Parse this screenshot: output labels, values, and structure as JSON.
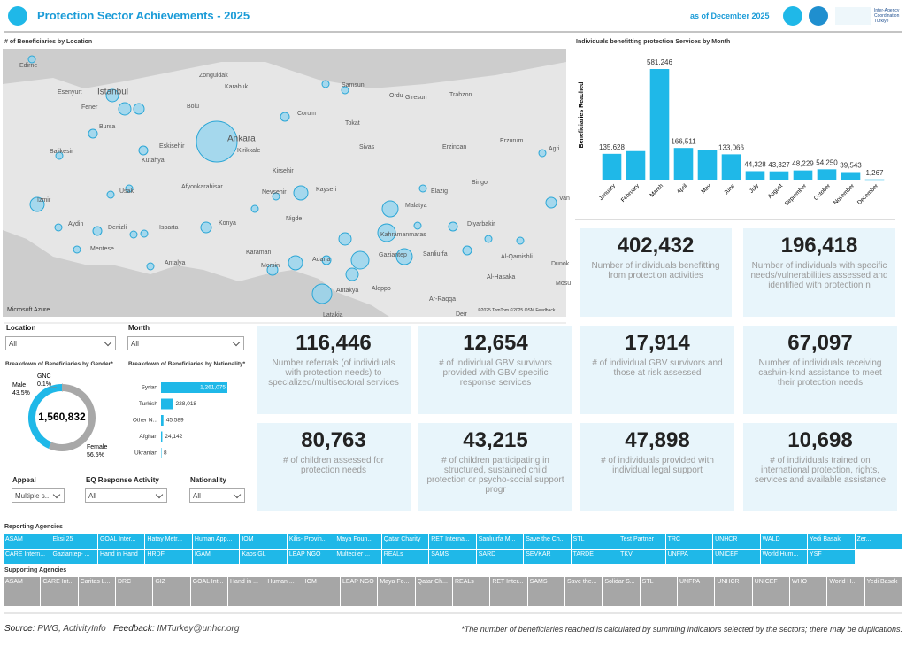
{
  "header": {
    "title": "Protection Sector Achievements - 2025",
    "as_of": "as of December 2025",
    "partner": "Inter-Agency Coordination Türkiye"
  },
  "map": {
    "title": "# of Beneficiaries by Location",
    "cities": [
      "Edirne",
      "Esenyurt",
      "Istanbul",
      "Fener",
      "Bursa",
      "Balikesir",
      "Eskisehir",
      "Kutahya",
      "Izmir",
      "Aydin",
      "Denizli",
      "Mentese",
      "Isparta",
      "Antalya",
      "Afyonkarahisar",
      "Usak",
      "Konya",
      "Ankara",
      "Kirikkale",
      "Kirsehir",
      "Nevsehir",
      "Nigde",
      "Kayseri",
      "Corum",
      "Samsun",
      "Karabuk",
      "Bolu",
      "Zonguldak",
      "Ordu",
      "Giresun",
      "Trabzon",
      "Tokat",
      "Sivas",
      "Erzincan",
      "Erzurum",
      "Agri",
      "Bingol",
      "Elazig",
      "Malatya",
      "Van",
      "Diyarbakir",
      "Kahramanmaras",
      "Gaziantep",
      "Sanliurfa",
      "Adana",
      "Mersin",
      "Karaman",
      "Antakya",
      "Aleppo",
      "Al-Qamishli",
      "Al-Hasaka",
      "Dunok",
      "Mosu",
      "Ar-Raqqa",
      "Latakia",
      "Deir"
    ],
    "attribution": "Microsoft Azure",
    "credits": "©2025 TomTom ©2025 OSM Feedback"
  },
  "chart_data": [
    {
      "type": "bar",
      "title": "Individuals benefitting protection Services by Month",
      "y_label": "Beneficiaries Reached",
      "categories": [
        "January",
        "February",
        "March",
        "April",
        "May",
        "June",
        "July",
        "August",
        "September",
        "October",
        "November",
        "December"
      ],
      "values": [
        135628,
        150000,
        581246,
        166511,
        158000,
        133066,
        44328,
        43327,
        48229,
        54250,
        39543,
        1267
      ],
      "value_labels": [
        "135,628",
        null,
        "581,246",
        "166,511",
        null,
        "133,066",
        "44,328",
        "43,327",
        "48,229",
        "54,250",
        "39,543",
        "1,267"
      ],
      "color": "#1fb8e8"
    },
    {
      "type": "pie",
      "title": "Breakdown of Beneficiaries by Gender*",
      "total_label": "1,560,832",
      "categories": [
        "GNC",
        "Female",
        "Male"
      ],
      "values": [
        0.1,
        56.5,
        43.5
      ],
      "value_labels": [
        "0.1%",
        "56.5%",
        "43.5%"
      ],
      "colors": [
        "#444444",
        "#a8a8a8",
        "#1fb8e8"
      ]
    },
    {
      "type": "hbar",
      "title": "Breakdown of Beneficiaries by Nationality*",
      "categories": [
        "Syrian",
        "Turkish",
        "Other N...",
        "Afghan",
        "Ukranian"
      ],
      "values": [
        1261075,
        228018,
        45589,
        24142,
        8
      ],
      "value_labels": [
        "1,261,075",
        "228,018",
        "45,589",
        "24,142",
        "8"
      ],
      "color": "#1fb8e8"
    }
  ],
  "kpis": [
    {
      "value": "402,432",
      "label": "Number of individuals benefitting from protection activities"
    },
    {
      "value": "196,418",
      "label": "Number of individuals with specific needs/vulnerabilities assessed and identified with protection n"
    },
    {
      "value": "116,446",
      "label": "Number referrals (of individuals with protection needs) to specialized/multisectoral services"
    },
    {
      "value": "12,654",
      "label": "# of individual GBV survivors provided with GBV specific response services"
    },
    {
      "value": "17,914",
      "label": "# of individual GBV survivors and those at risk assessed"
    },
    {
      "value": "67,097",
      "label": "Number of individuals receiving cash/in-kind assistance to meet their protection needs"
    },
    {
      "value": "80,763",
      "label": "# of children assessed for protection needs"
    },
    {
      "value": "43,215",
      "label": "# of children participating in structured, sustained child protection or psycho-social support progr"
    },
    {
      "value": "47,898",
      "label": "# of individuals provided with individual legal support"
    },
    {
      "value": "10,698",
      "label": "# of individuals trained on international protection, rights, services and available assistance"
    }
  ],
  "filters": [
    {
      "label": "Location",
      "value": "All"
    },
    {
      "label": "Month",
      "value": "All"
    },
    {
      "label": "Appeal",
      "value": "Multiple s..."
    },
    {
      "label": "EQ Response Activity",
      "value": "All"
    },
    {
      "label": "Nationality",
      "value": "All"
    }
  ],
  "reporting_agencies": {
    "title": "Reporting Agencies",
    "rows": [
      [
        "ASAM",
        "Eksi 25",
        "GOAL Inter...",
        "Hatay Metr...",
        "Human App...",
        "IOM",
        "Kilis- Provin...",
        "Maya Foun...",
        "Qatar Charity",
        "RET Interna...",
        "Sanlıurfa M...",
        "Save the Ch...",
        "STL",
        "Test Partner",
        "TRC",
        "UNHCR",
        "WALD",
        "Yedi Basak",
        "Zer..."
      ],
      [
        "CARE Intern...",
        "Gaziantep- ...",
        "Hand in Hand",
        "HRDF",
        "IGAM",
        "Kaos GL",
        "LEAP NGO",
        "Multeciler ...",
        "REALs",
        "SAMS",
        "SARD",
        "SEVKAR",
        "TARDE",
        "TKV",
        "UNFPA",
        "UNICEF",
        "World Hum...",
        "YSF"
      ]
    ]
  },
  "supporting_agencies": {
    "title": "Supporting Agencies",
    "items": [
      "ASAM",
      "CARE Int...",
      "Caritas L...",
      "DRC",
      "GIZ",
      "GOAL Int...",
      "Hand in ...",
      "Human ...",
      "IOM",
      "LEAP NGO",
      "Maya Fo...",
      "Qatar Ch...",
      "REALs",
      "RET Inter...",
      "SAMS",
      "Save the...",
      "Solidar S...",
      "STL",
      "UNFPA",
      "UNHCR",
      "UNICEF",
      "WHO",
      "World H...",
      "Yedi Basak"
    ]
  },
  "footer": {
    "source_label": "Source",
    "source": ": PWG, ActivityInfo",
    "feedback_label": "Feedback",
    "feedback": ": IMTurkey@unhcr.org",
    "note": "*The number of beneficiaries reached is calculated by summing indicators selected by the sectors; there may be duplications."
  }
}
